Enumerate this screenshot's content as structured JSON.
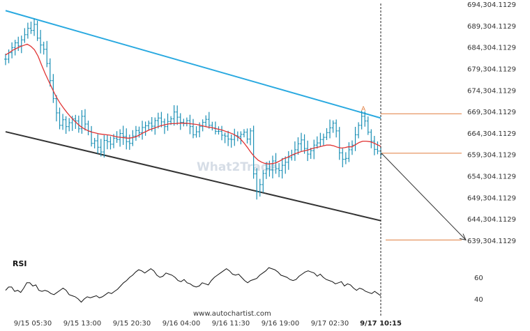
{
  "chart_data": {
    "type": "line",
    "title": "",
    "xlabel": "",
    "ylabel": "",
    "ylim": [
      635304.1129,
      696304.1129
    ],
    "y_ticks": [
      "694,304.1129",
      "689,304.1129",
      "684,304.1129",
      "679,304.1129",
      "674,304.1129",
      "669,304.1129",
      "664,304.1129",
      "659,304.1129",
      "654,304.1129",
      "649,304.1129",
      "644,304.1129",
      "639,304.1129"
    ],
    "y_tick_values": [
      694304.1129,
      689304.1129,
      684304.1129,
      679304.1129,
      674304.1129,
      669304.1129,
      664304.1129,
      659304.1129,
      654304.1129,
      649304.1129,
      644304.1129,
      639304.1129
    ],
    "x_ticks": [
      "9/15 05:30",
      "9/15 13:00",
      "9/15 20:30",
      "9/16 04:00",
      "9/16 11:30",
      "9/16 19:00",
      "9/17 02:30"
    ],
    "x_tick_last": "9/17 10:15",
    "price_series": [
      681500,
      683000,
      684200,
      685300,
      684600,
      686000,
      687200,
      688700,
      688200,
      689600,
      686400,
      684800,
      683800,
      680500,
      676500,
      672300,
      669000,
      666100,
      667400,
      665800,
      666700,
      667600,
      667100,
      665300,
      668200,
      666400,
      664700,
      661900,
      662500,
      661000,
      659900,
      662600,
      662300,
      661700,
      663100,
      662800,
      664200,
      663500,
      662300,
      661900,
      663600,
      664900,
      664400,
      665600,
      666000,
      666600,
      665900,
      667200,
      667800,
      666900,
      665800,
      667000,
      667600,
      669200,
      668000,
      666800,
      666500,
      667200,
      665800,
      663900,
      664600,
      665800,
      666800,
      667500,
      666100,
      665500,
      664700,
      664700,
      663800,
      663600,
      662900,
      662800,
      663700,
      663500,
      664000,
      664500,
      662900,
      664800,
      654800,
      650700,
      652300,
      654900,
      656000,
      655700,
      657800,
      656000,
      655600,
      656800,
      657500,
      658600,
      659200,
      660400,
      661800,
      662700,
      660700,
      659400,
      660200,
      661500,
      662000,
      662800,
      663300,
      664400,
      665500,
      666600,
      664800,
      659700,
      658200,
      658400,
      660400,
      661500,
      663900,
      666100,
      668200,
      667100,
      664500,
      662400,
      660500,
      660100,
      659300
    ],
    "ma_series": [
      682500,
      683000,
      683600,
      684000,
      684400,
      684700,
      685000,
      684500,
      683700,
      682200,
      680100,
      678100,
      676300,
      674500,
      672800,
      671400,
      670200,
      669100,
      668100,
      667200,
      666400,
      665700,
      665200,
      664800,
      664500,
      664300,
      664100,
      664000,
      663900,
      663800,
      663600,
      663400,
      663300,
      663200,
      663100,
      663200,
      663400,
      663800,
      664300,
      664700,
      665100,
      665400,
      665700,
      666000,
      666200,
      666400,
      666500,
      666500,
      666600,
      666600,
      666600,
      666500,
      666400,
      666300,
      666100,
      665900,
      665700,
      665600,
      665400,
      665200,
      665000,
      664700,
      664400,
      664100,
      663600,
      663000,
      662100,
      661000,
      659800,
      658800,
      658000,
      657500,
      657200,
      657100,
      657200,
      657400,
      657800,
      658300,
      658600,
      659000,
      659400,
      659700,
      660000,
      660200,
      660400,
      660700,
      660900,
      661100,
      661300,
      661500,
      661500,
      661300,
      661000,
      660800,
      660900,
      661100,
      661100,
      661600,
      662100,
      662400,
      662400,
      662300,
      662000,
      661600,
      661200
    ],
    "rsi_series": [
      48,
      51,
      51,
      47,
      48,
      46,
      50,
      55,
      55,
      52,
      53,
      48,
      47,
      48,
      47,
      45,
      44,
      46,
      48,
      50,
      48,
      44,
      43,
      42,
      40,
      37,
      40,
      42,
      41,
      42,
      43,
      41,
      42,
      44,
      46,
      45,
      47,
      49,
      52,
      55,
      57,
      60,
      62,
      65,
      67,
      66,
      64,
      66,
      68,
      66,
      62,
      60,
      61,
      64,
      63,
      62,
      60,
      57,
      56,
      58,
      55,
      54,
      52,
      51,
      52,
      55,
      54,
      53,
      57,
      60,
      62,
      64,
      66,
      68,
      66,
      63,
      62,
      63,
      60,
      57,
      55,
      57,
      58,
      59,
      62,
      64,
      66,
      69,
      68,
      67,
      65,
      62,
      61,
      60,
      58,
      57,
      58,
      61,
      63,
      65,
      66,
      65,
      64,
      61,
      63,
      60,
      58,
      57,
      56,
      54,
      55,
      56,
      52,
      54,
      53,
      50,
      48,
      50,
      49,
      47,
      46,
      45,
      47,
      45,
      43
    ],
    "rsi_ticks": [
      "60",
      "40"
    ],
    "rsi_label": "RSI",
    "upper_channel": {
      "start": 692800,
      "end": 667800
    },
    "lower_channel": {
      "start": 664600,
      "end": 643900
    },
    "resistance_level": 668800,
    "breakout_level": 659600,
    "target_level": 639400,
    "point_label": "A",
    "colors": {
      "price": "#1a8fb5",
      "ma": "#e03333",
      "upper": "#29a9e0",
      "lower": "#333333",
      "level": "#e07b3c",
      "rsi": "#111111",
      "arrow": "#333333"
    }
  },
  "watermark": "What2Trade",
  "source": "www.autochartist.com"
}
